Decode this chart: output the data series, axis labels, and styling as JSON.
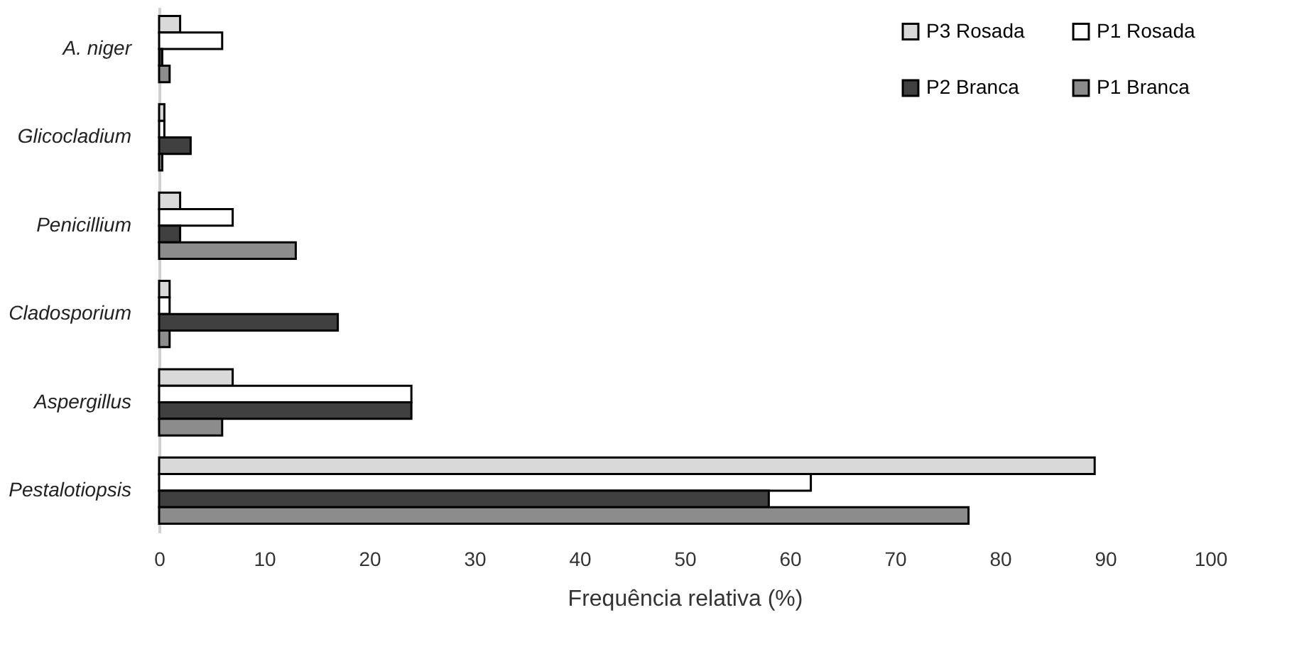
{
  "chart_data": {
    "type": "bar",
    "orientation": "horizontal",
    "xlabel": "Frequência relativa (%)",
    "categories": [
      "A. niger",
      "Glicocladium",
      "Penicillium",
      "Cladosporium",
      "Aspergillus",
      "Pestalotiopsis"
    ],
    "series": [
      {
        "name": "P3 Rosada",
        "color": "#d9d9d9",
        "values": [
          2,
          0.5,
          2,
          1,
          7,
          89
        ]
      },
      {
        "name": "P1 Rosada",
        "color": "#ffffff",
        "values": [
          6,
          0.5,
          7,
          1,
          24,
          62
        ]
      },
      {
        "name": "P2 Branca",
        "color": "#404040",
        "values": [
          0.3,
          3,
          2,
          17,
          24,
          58
        ]
      },
      {
        "name": "P1 Branca",
        "color": "#8c8c8c",
        "values": [
          1,
          0.3,
          13,
          1,
          6,
          77
        ]
      }
    ],
    "xlim": [
      0,
      100
    ],
    "xticks": [
      0,
      10,
      20,
      30,
      40,
      50,
      60,
      70,
      80,
      90,
      100
    ],
    "grid": false,
    "legend": "top right"
  }
}
